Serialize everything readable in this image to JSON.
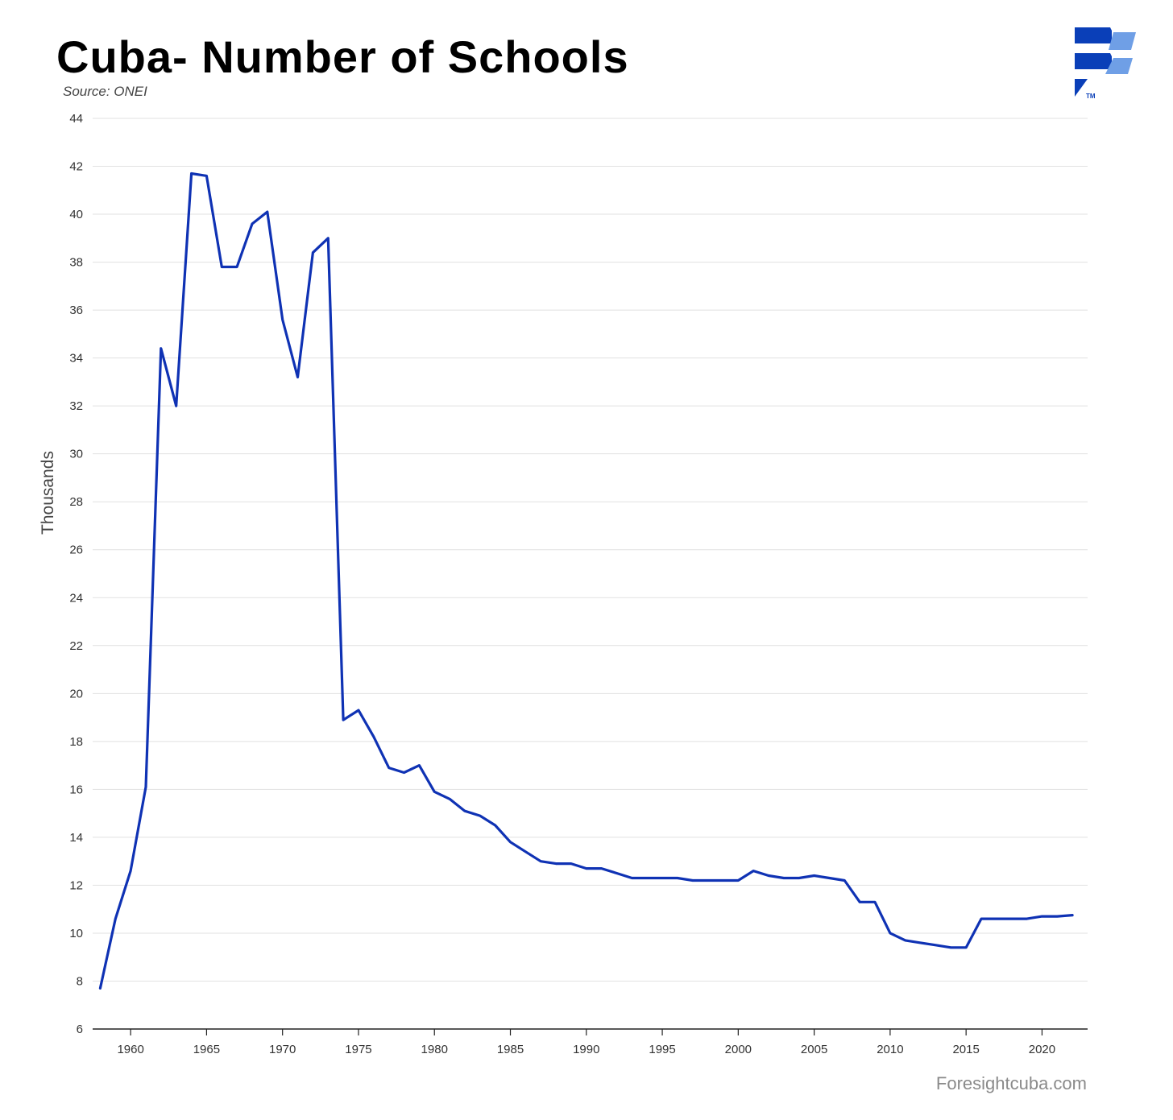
{
  "header": {
    "title": "Cuba- Number of Schools",
    "source": "Source: ONEI"
  },
  "footer": {
    "site": "Foresightcuba.com"
  },
  "colors": {
    "line": "#0f32b4",
    "logo_dark": "#0a3fb8",
    "logo_light": "#6f9fe6"
  },
  "icons": {
    "logo": "foresight-logo-icon"
  },
  "chart_data": {
    "type": "line",
    "title": "Cuba- Number of Schools",
    "xlabel": "",
    "ylabel": "Thousands",
    "xlim": [
      1957.5,
      2023
    ],
    "ylim": [
      6,
      44
    ],
    "yticks": [
      6,
      8,
      10,
      12,
      14,
      16,
      18,
      20,
      22,
      24,
      26,
      28,
      30,
      32,
      34,
      36,
      38,
      40,
      42,
      44
    ],
    "xticks": [
      1960,
      1965,
      1970,
      1975,
      1980,
      1985,
      1990,
      1995,
      2000,
      2005,
      2010,
      2015,
      2020
    ],
    "grid": "horizontal",
    "series": [
      {
        "x": [
          1958,
          1959,
          1960,
          1961,
          1962,
          1963,
          1964,
          1965,
          1966,
          1967,
          1968,
          1969,
          1970,
          1971,
          1972,
          1973,
          1974,
          1975,
          1976,
          1977,
          1978,
          1979,
          1980,
          1981,
          1982,
          1983,
          1984,
          1985,
          1986,
          1987,
          1988,
          1989,
          1990,
          1991,
          1992,
          1993,
          1994,
          1995,
          1996,
          1997,
          1998,
          1999,
          2000,
          2001,
          2002,
          2003,
          2004,
          2005,
          2006,
          2007,
          2008,
          2009,
          2010,
          2011,
          2012,
          2013,
          2014,
          2015,
          2016,
          2017,
          2018,
          2019,
          2020,
          2021,
          2022
        ],
        "values": [
          7.7,
          10.6,
          12.6,
          16.1,
          34.4,
          32.0,
          41.7,
          41.6,
          37.8,
          37.8,
          39.6,
          40.1,
          35.6,
          33.2,
          38.4,
          39.0,
          18.9,
          19.3,
          18.2,
          16.9,
          16.7,
          17.0,
          15.9,
          15.6,
          15.1,
          14.9,
          14.5,
          13.8,
          13.4,
          13.0,
          12.9,
          12.9,
          12.7,
          12.7,
          12.5,
          12.3,
          12.3,
          12.3,
          12.3,
          12.2,
          12.2,
          12.2,
          12.2,
          12.6,
          12.4,
          12.3,
          12.3,
          12.4,
          12.3,
          12.2,
          11.3,
          11.3,
          10.0,
          9.7,
          9.6,
          9.5,
          9.4,
          9.4,
          10.6,
          10.6,
          10.6,
          10.6,
          10.7,
          10.7,
          10.75
        ]
      }
    ]
  }
}
